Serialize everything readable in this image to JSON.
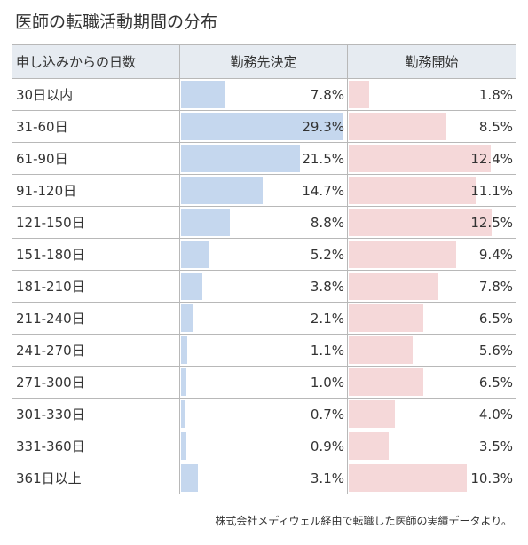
{
  "title": "医師の転職活動期間の分布",
  "columns": {
    "label": "申し込みからの日数",
    "series1": "勤務先決定",
    "series2": "勤務開始"
  },
  "colors": {
    "series1": "#c5d7ee",
    "series2": "#f5d8d9"
  },
  "chart_data": {
    "type": "table",
    "title": "医師の転職活動期間の分布",
    "categories": [
      "30日以内",
      "31-60日",
      "61-90日",
      "91-120日",
      "121-150日",
      "151-180日",
      "181-210日",
      "211-240日",
      "241-270日",
      "271-300日",
      "301-330日",
      "331-360日",
      "361日以上"
    ],
    "series": [
      {
        "name": "勤務先決定",
        "values": [
          7.8,
          29.3,
          21.5,
          14.7,
          8.8,
          5.2,
          3.8,
          2.1,
          1.1,
          1.0,
          0.7,
          0.9,
          3.1
        ],
        "labels": [
          "7.8%",
          "29.3%",
          "21.5%",
          "14.7%",
          "8.8%",
          "5.2%",
          "3.8%",
          "2.1%",
          "1.1%",
          "1.0%",
          "0.7%",
          "0.9%",
          "3.1%"
        ]
      },
      {
        "name": "勤務開始",
        "values": [
          1.8,
          8.5,
          12.4,
          11.1,
          12.5,
          9.4,
          7.8,
          6.5,
          5.6,
          6.5,
          4.0,
          3.5,
          10.3
        ],
        "labels": [
          "1.8%",
          "8.5%",
          "12.4%",
          "11.1%",
          "12.5%",
          "9.4%",
          "7.8%",
          "6.5%",
          "5.6%",
          "6.5%",
          "4.0%",
          "3.5%",
          "10.3%"
        ]
      }
    ],
    "unit": "%"
  },
  "caption": "株式会社メディウェル経由で転職した医師の実績データより。"
}
